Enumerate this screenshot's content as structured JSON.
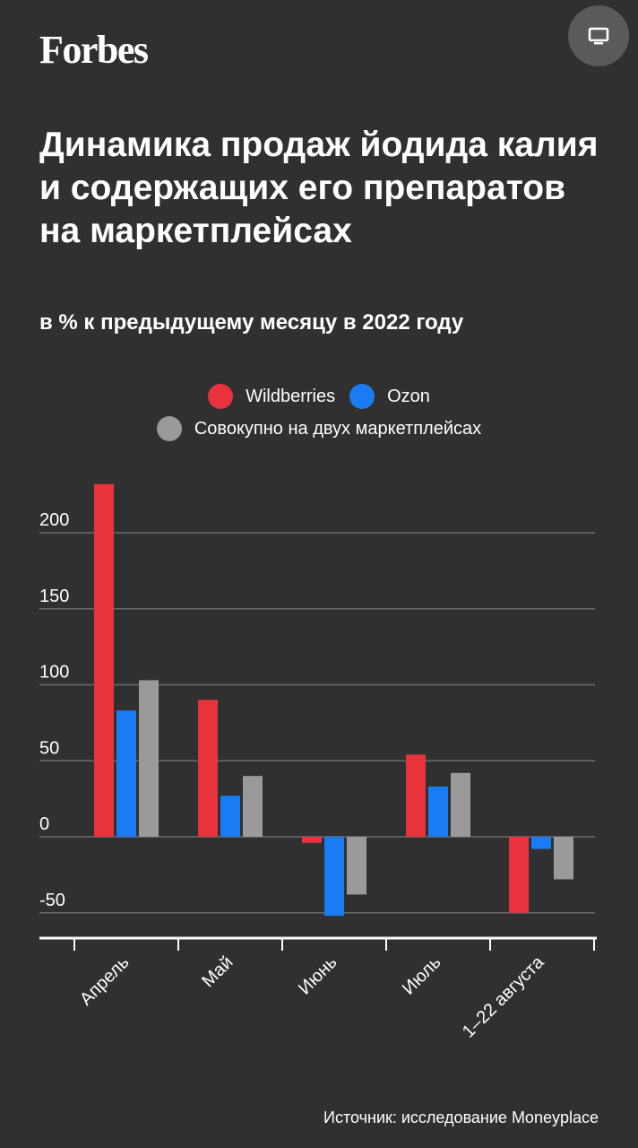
{
  "header": {
    "logo_text": "Forbes",
    "screen_button_icon": "monitor-icon"
  },
  "title": "Динамика продаж йодида калия и содержащих его препаратов на маркетплейсах",
  "subtitle": "в % к предыдущему месяцу в 2022 году",
  "legend": [
    {
      "label": "Wildberries",
      "color": "#e8333d"
    },
    {
      "label": "Ozon",
      "color": "#1a7cf5"
    },
    {
      "label": "Совокупно на двух маркетплейсах",
      "color": "#9a9a9a"
    }
  ],
  "source": "Источник: исследование Moneyplace",
  "chart_data": {
    "type": "bar",
    "categories": [
      "Апрель",
      "Май",
      "Июнь",
      "Июль",
      "1–22 августа"
    ],
    "series": [
      {
        "name": "Wildberries",
        "color": "#e8333d",
        "values": [
          232,
          90,
          -4,
          54,
          -50
        ]
      },
      {
        "name": "Ozon",
        "color": "#1a7cf5",
        "values": [
          83,
          27,
          -52,
          33,
          -8
        ]
      },
      {
        "name": "Совокупно на двух маркетплейсах",
        "color": "#9a9a9a",
        "values": [
          103,
          40,
          -38,
          42,
          -28
        ]
      }
    ],
    "yticks": [
      200,
      150,
      100,
      50,
      0,
      -50
    ],
    "ylim": [
      -66,
      240
    ],
    "grid": true,
    "legend_position": "top"
  }
}
